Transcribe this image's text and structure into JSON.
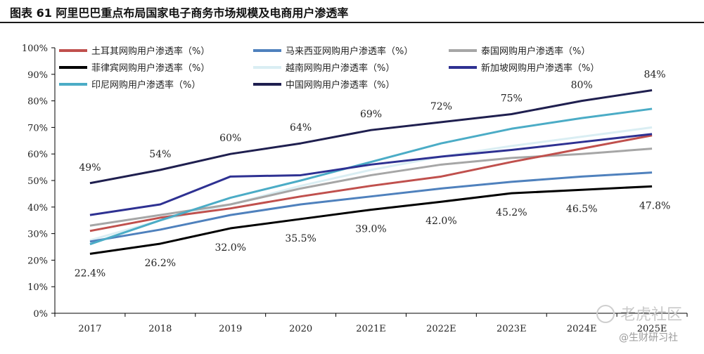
{
  "title": "图表 61 阿里巴巴重点布局国家电子商务市场规模及电商用户渗透率",
  "watermark": {
    "main": "老虎社区",
    "sub": "@生财研习社"
  },
  "chart_data": {
    "type": "line",
    "categories": [
      "2017",
      "2018",
      "2019",
      "2020",
      "2021E",
      "2022E",
      "2023E",
      "2024E",
      "2025E"
    ],
    "ylim": [
      0,
      100
    ],
    "yticks": [
      "0%",
      "10%",
      "20%",
      "30%",
      "40%",
      "50%",
      "60%",
      "70%",
      "80%",
      "90%",
      "100%"
    ],
    "grid": false,
    "legend_position": "top",
    "series": [
      {
        "name": "土耳其网购用户渗透率（%）",
        "color": "#c0504d",
        "values": [
          31,
          36,
          39.5,
          44,
          48,
          51.5,
          57,
          62,
          67
        ]
      },
      {
        "name": "马来西亚网购用户渗透率（%）",
        "color": "#4f81bd",
        "values": [
          27,
          31.5,
          37,
          41,
          44,
          47,
          49.5,
          51.5,
          53
        ]
      },
      {
        "name": "泰国网购用户渗透率（%）",
        "color": "#a6a6a6",
        "values": [
          33,
          37,
          41,
          47,
          52,
          56,
          58.5,
          60,
          62
        ]
      },
      {
        "name": "菲律宾网购用户渗透率（%）",
        "color": "#000000",
        "values": [
          22.4,
          26.2,
          32.0,
          35.5,
          39.0,
          42.0,
          45.2,
          46.5,
          47.8
        ],
        "labels": [
          "22.4%",
          "26.2%",
          "32.0%",
          "35.5%",
          "39.0%",
          "42.0%",
          "45.2%",
          "46.5%",
          "47.8%"
        ]
      },
      {
        "name": "越南网购用户渗透率（%）",
        "color": "#daeef3",
        "values": [
          27.5,
          35,
          41,
          48,
          54,
          59,
          63,
          66.5,
          70
        ]
      },
      {
        "name": "新加坡网购用户渗透率（%）",
        "color": "#2e3192",
        "values": [
          37,
          41,
          51.5,
          52,
          56,
          59,
          61.5,
          64.5,
          67.5
        ]
      },
      {
        "name": "印尼网购用户渗透率（%）",
        "color": "#4bacc6",
        "values": [
          26,
          35,
          43.5,
          50,
          57,
          64,
          69.5,
          73.5,
          77
        ]
      },
      {
        "name": "中国网购用户渗透率（%）",
        "color": "#1f1f4f",
        "values": [
          49,
          54,
          60,
          64,
          69,
          72,
          75,
          80,
          84
        ],
        "labels": [
          "49%",
          "54%",
          "60%",
          "64%",
          "69%",
          "72%",
          "75%",
          "80%",
          "84%"
        ]
      }
    ]
  }
}
